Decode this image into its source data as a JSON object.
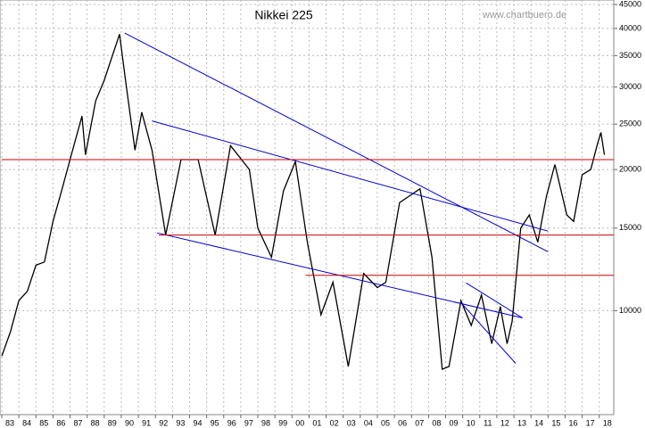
{
  "chart_data": {
    "type": "line",
    "title": "Nikkei 225",
    "watermark": "www.chartbuero.de",
    "log_scale": true,
    "grid": true,
    "xlim": [
      1983,
      2018.85
    ],
    "ylim": [
      6000,
      46000
    ],
    "yticks": [
      45000,
      40000,
      35000,
      30000,
      25000,
      20000,
      15000,
      10000
    ],
    "xticks": [
      {
        "value": 1983,
        "label": "83"
      },
      {
        "value": 1984,
        "label": "84"
      },
      {
        "value": 1985,
        "label": "85"
      },
      {
        "value": 1986,
        "label": "86"
      },
      {
        "value": 1987,
        "label": "87"
      },
      {
        "value": 1988,
        "label": "88"
      },
      {
        "value": 1989,
        "label": "89"
      },
      {
        "value": 1990,
        "label": "90"
      },
      {
        "value": 1991,
        "label": "91"
      },
      {
        "value": 1992,
        "label": "92"
      },
      {
        "value": 1993,
        "label": "93"
      },
      {
        "value": 1994,
        "label": "94"
      },
      {
        "value": 1995,
        "label": "95"
      },
      {
        "value": 1996,
        "label": "96"
      },
      {
        "value": 1997,
        "label": "97"
      },
      {
        "value": 1998,
        "label": "98"
      },
      {
        "value": 1999,
        "label": "99"
      },
      {
        "value": 2000,
        "label": "00"
      },
      {
        "value": 2001,
        "label": "01"
      },
      {
        "value": 2002,
        "label": "02"
      },
      {
        "value": 2003,
        "label": "03"
      },
      {
        "value": 2004,
        "label": "04"
      },
      {
        "value": 2005,
        "label": "05"
      },
      {
        "value": 2006,
        "label": "06"
      },
      {
        "value": 2007,
        "label": "07"
      },
      {
        "value": 2008,
        "label": "08"
      },
      {
        "value": 2009,
        "label": "09"
      },
      {
        "value": 2010,
        "label": "10"
      },
      {
        "value": 2011,
        "label": "11"
      },
      {
        "value": 2012,
        "label": "12"
      },
      {
        "value": 2013,
        "label": "13"
      },
      {
        "value": 2014,
        "label": "14"
      },
      {
        "value": 2015,
        "label": "15"
      },
      {
        "value": 2016,
        "label": "16"
      },
      {
        "value": 2017,
        "label": "17"
      },
      {
        "value": 2018,
        "label": "18"
      }
    ],
    "series": [
      {
        "color": "#000000",
        "x": [
          1983,
          1983.5,
          1984,
          1984.5,
          1985,
          1985.5,
          1986,
          1986.5,
          1987,
          1987.7,
          1987.9,
          1988.5,
          1989,
          1989.9,
          1990.3,
          1990.8,
          1991.2,
          1991.8,
          1992.6,
          1993.5,
          1994.5,
          1995.5,
          1996.4,
          1997.5,
          1998,
          1998.8,
          1999.5,
          2000.2,
          2000.9,
          2001.7,
          2002.4,
          2003.3,
          2004.2,
          2005,
          2005.5,
          2006.3,
          2007.5,
          2008.2,
          2008.8,
          2009.2,
          2009.9,
          2010.5,
          2011.1,
          2011.7,
          2012.2,
          2012.6,
          2012.9,
          2013.4,
          2013.9,
          2014.4,
          2014.9,
          2015.4,
          2016.1,
          2016.5,
          2017,
          2017.5,
          2017.9,
          2018.1,
          2018.3
        ],
        "values": [
          8000,
          9000,
          10500,
          11000,
          12500,
          12700,
          15500,
          18000,
          21000,
          26000,
          21500,
          28000,
          31000,
          38900,
          30000,
          22000,
          26500,
          22000,
          14500,
          21000,
          21000,
          14500,
          22500,
          20000,
          15000,
          13000,
          18000,
          20800,
          14000,
          9800,
          11500,
          7600,
          12000,
          11200,
          11500,
          17000,
          18200,
          13000,
          7500,
          7600,
          10500,
          9300,
          10800,
          8500,
          10200,
          8500,
          9500,
          15000,
          16000,
          14000,
          17500,
          20500,
          16000,
          15500,
          19500,
          20000,
          22700,
          24000,
          21500
        ]
      }
    ],
    "trendlines": [
      {
        "color": "#0000cc",
        "x": [
          1990.2,
          2015.0
        ],
        "values": [
          39100,
          13360
        ]
      },
      {
        "color": "#0000cc",
        "x": [
          1991.8,
          2015.0
        ],
        "values": [
          25400,
          14780
        ]
      },
      {
        "color": "#0000cc",
        "x": [
          1992.1,
          2013.5
        ],
        "values": [
          14650,
          9650
        ]
      },
      {
        "color": "#0000cc",
        "x": [
          2010.2,
          2013.5
        ],
        "values": [
          11460,
          9650
        ]
      },
      {
        "color": "#0000cc",
        "x": [
          2009.9,
          2013.1
        ],
        "values": [
          10400,
          7720
        ]
      },
      {
        "color": "#cc0000",
        "x": [
          1983,
          2018.85
        ],
        "values": [
          21000,
          21000
        ]
      },
      {
        "color": "#cc0000",
        "x": [
          1992.2,
          2018.85
        ],
        "values": [
          14500,
          14500
        ]
      },
      {
        "color": "#cc0000",
        "x": [
          2000.8,
          2018.85
        ],
        "values": [
          11900,
          11900
        ]
      }
    ]
  }
}
